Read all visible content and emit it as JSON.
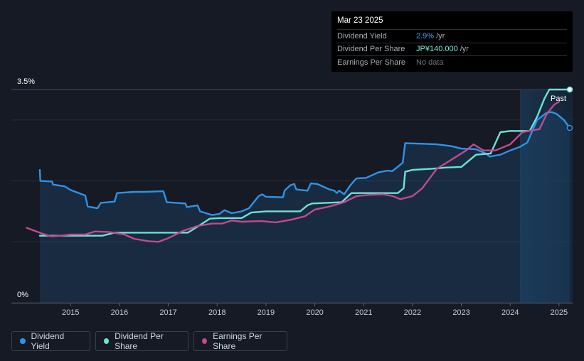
{
  "tooltip": {
    "date": "Mar 23 2025",
    "rows": [
      {
        "label": "Dividend Yield",
        "value": "2.9%",
        "unit": "/yr"
      },
      {
        "label": "Dividend Per Share",
        "value": "JP¥140.000",
        "unit": "/yr"
      },
      {
        "label": "Earnings Per Share",
        "value": "No data",
        "unit": ""
      }
    ]
  },
  "legend": [
    {
      "label": "Dividend Yield",
      "color": "#2e93e8"
    },
    {
      "label": "Dividend Per Share",
      "color": "#6fe0d6"
    },
    {
      "label": "Earnings Per Share",
      "color": "#c2498f"
    }
  ],
  "chart_data": {
    "type": "line",
    "y_axis": {
      "min": 0,
      "max": 3.5,
      "tick_labels": [
        "3.5%",
        "0%"
      ],
      "gridlines": [
        0,
        1,
        2,
        3,
        3.5
      ]
    },
    "x_axis": {
      "min": 2014.1,
      "max": 2025.25,
      "tick_labels": [
        "2015",
        "2016",
        "2017",
        "2018",
        "2019",
        "2020",
        "2021",
        "2022",
        "2023",
        "2024",
        "2025"
      ]
    },
    "past_label": "Past",
    "forecast_start": 2024.21,
    "series": [
      {
        "name": "Dividend Yield",
        "color": "#2e93e8",
        "area": true,
        "points": [
          [
            2014.37,
            2.18
          ],
          [
            2014.38,
            2.0
          ],
          [
            2014.62,
            1.99
          ],
          [
            2014.64,
            1.94
          ],
          [
            2014.88,
            1.91
          ],
          [
            2015.0,
            1.85
          ],
          [
            2015.3,
            1.76
          ],
          [
            2015.35,
            1.58
          ],
          [
            2015.55,
            1.55
          ],
          [
            2015.62,
            1.64
          ],
          [
            2015.9,
            1.66
          ],
          [
            2015.95,
            1.8
          ],
          [
            2016.3,
            1.82
          ],
          [
            2016.5,
            1.82
          ],
          [
            2016.9,
            1.83
          ],
          [
            2016.97,
            1.65
          ],
          [
            2017.35,
            1.63
          ],
          [
            2017.38,
            1.57
          ],
          [
            2017.6,
            1.6
          ],
          [
            2017.65,
            1.5
          ],
          [
            2017.9,
            1.44
          ],
          [
            2018.05,
            1.46
          ],
          [
            2018.15,
            1.52
          ],
          [
            2018.3,
            1.47
          ],
          [
            2018.5,
            1.5
          ],
          [
            2018.65,
            1.55
          ],
          [
            2018.85,
            1.75
          ],
          [
            2018.92,
            1.78
          ],
          [
            2019.0,
            1.74
          ],
          [
            2019.35,
            1.73
          ],
          [
            2019.38,
            1.84
          ],
          [
            2019.5,
            1.93
          ],
          [
            2019.58,
            1.95
          ],
          [
            2019.62,
            1.86
          ],
          [
            2019.85,
            1.84
          ],
          [
            2019.92,
            1.96
          ],
          [
            2020.05,
            1.95
          ],
          [
            2020.3,
            1.86
          ],
          [
            2020.4,
            1.84
          ],
          [
            2020.45,
            1.8
          ],
          [
            2020.5,
            1.84
          ],
          [
            2020.6,
            1.78
          ],
          [
            2020.72,
            1.92
          ],
          [
            2020.85,
            2.04
          ],
          [
            2021.05,
            2.05
          ],
          [
            2021.3,
            2.14
          ],
          [
            2021.5,
            2.17
          ],
          [
            2021.58,
            2.16
          ],
          [
            2021.65,
            2.2
          ],
          [
            2021.8,
            2.3
          ],
          [
            2021.85,
            2.62
          ],
          [
            2022.2,
            2.61
          ],
          [
            2022.5,
            2.6
          ],
          [
            2022.8,
            2.57
          ],
          [
            2023.0,
            2.53
          ],
          [
            2023.3,
            2.52
          ],
          [
            2023.5,
            2.45
          ],
          [
            2023.58,
            2.4
          ],
          [
            2023.8,
            2.43
          ],
          [
            2024.0,
            2.5
          ],
          [
            2024.2,
            2.56
          ],
          [
            2024.35,
            2.63
          ],
          [
            2024.55,
            3.0
          ],
          [
            2024.75,
            3.12
          ],
          [
            2024.85,
            3.13
          ],
          [
            2024.95,
            3.1
          ],
          [
            2025.1,
            3.0
          ],
          [
            2025.22,
            2.87
          ]
        ]
      },
      {
        "name": "Dividend Per Share",
        "color": "#6fe0d6",
        "area": false,
        "points": [
          [
            2014.37,
            1.1
          ],
          [
            2015.0,
            1.1
          ],
          [
            2015.65,
            1.1
          ],
          [
            2015.9,
            1.15
          ],
          [
            2016.5,
            1.15
          ],
          [
            2017.4,
            1.15
          ],
          [
            2017.6,
            1.25
          ],
          [
            2017.85,
            1.38
          ],
          [
            2018.05,
            1.39
          ],
          [
            2018.5,
            1.39
          ],
          [
            2018.7,
            1.48
          ],
          [
            2019.0,
            1.5
          ],
          [
            2019.7,
            1.5
          ],
          [
            2019.85,
            1.6
          ],
          [
            2019.95,
            1.63
          ],
          [
            2020.55,
            1.65
          ],
          [
            2020.75,
            1.8
          ],
          [
            2021.0,
            1.8
          ],
          [
            2021.7,
            1.8
          ],
          [
            2021.82,
            1.88
          ],
          [
            2021.85,
            2.15
          ],
          [
            2022.0,
            2.18
          ],
          [
            2022.4,
            2.2
          ],
          [
            2022.7,
            2.22
          ],
          [
            2023.0,
            2.23
          ],
          [
            2023.3,
            2.43
          ],
          [
            2023.6,
            2.45
          ],
          [
            2023.8,
            2.8
          ],
          [
            2024.0,
            2.82
          ],
          [
            2024.4,
            2.82
          ],
          [
            2024.55,
            3.05
          ],
          [
            2024.7,
            3.35
          ],
          [
            2024.8,
            3.5
          ],
          [
            2025.22,
            3.5
          ]
        ]
      },
      {
        "name": "Earnings Per Share",
        "color": "#c2498f",
        "area": false,
        "points": [
          [
            2014.1,
            1.23
          ],
          [
            2014.4,
            1.14
          ],
          [
            2014.6,
            1.09
          ],
          [
            2014.8,
            1.1
          ],
          [
            2015.0,
            1.12
          ],
          [
            2015.3,
            1.12
          ],
          [
            2015.5,
            1.17
          ],
          [
            2015.8,
            1.16
          ],
          [
            2016.1,
            1.12
          ],
          [
            2016.3,
            1.05
          ],
          [
            2016.6,
            1.01
          ],
          [
            2016.8,
            1.0
          ],
          [
            2017.0,
            1.06
          ],
          [
            2017.3,
            1.18
          ],
          [
            2017.6,
            1.26
          ],
          [
            2017.9,
            1.3
          ],
          [
            2018.1,
            1.3
          ],
          [
            2018.3,
            1.35
          ],
          [
            2018.5,
            1.33
          ],
          [
            2018.9,
            1.34
          ],
          [
            2019.2,
            1.32
          ],
          [
            2019.5,
            1.36
          ],
          [
            2019.8,
            1.42
          ],
          [
            2020.0,
            1.53
          ],
          [
            2020.3,
            1.58
          ],
          [
            2020.6,
            1.65
          ],
          [
            2020.85,
            1.75
          ],
          [
            2021.1,
            1.77
          ],
          [
            2021.4,
            1.78
          ],
          [
            2021.6,
            1.75
          ],
          [
            2021.75,
            1.7
          ],
          [
            2022.0,
            1.75
          ],
          [
            2022.2,
            1.88
          ],
          [
            2022.5,
            2.2
          ],
          [
            2022.8,
            2.35
          ],
          [
            2023.1,
            2.5
          ],
          [
            2023.25,
            2.6
          ],
          [
            2023.45,
            2.5
          ],
          [
            2023.7,
            2.5
          ],
          [
            2024.0,
            2.6
          ],
          [
            2024.25,
            2.8
          ],
          [
            2024.6,
            2.85
          ],
          [
            2024.75,
            3.1
          ],
          [
            2024.9,
            3.25
          ],
          [
            2025.0,
            3.3
          ]
        ]
      }
    ]
  }
}
